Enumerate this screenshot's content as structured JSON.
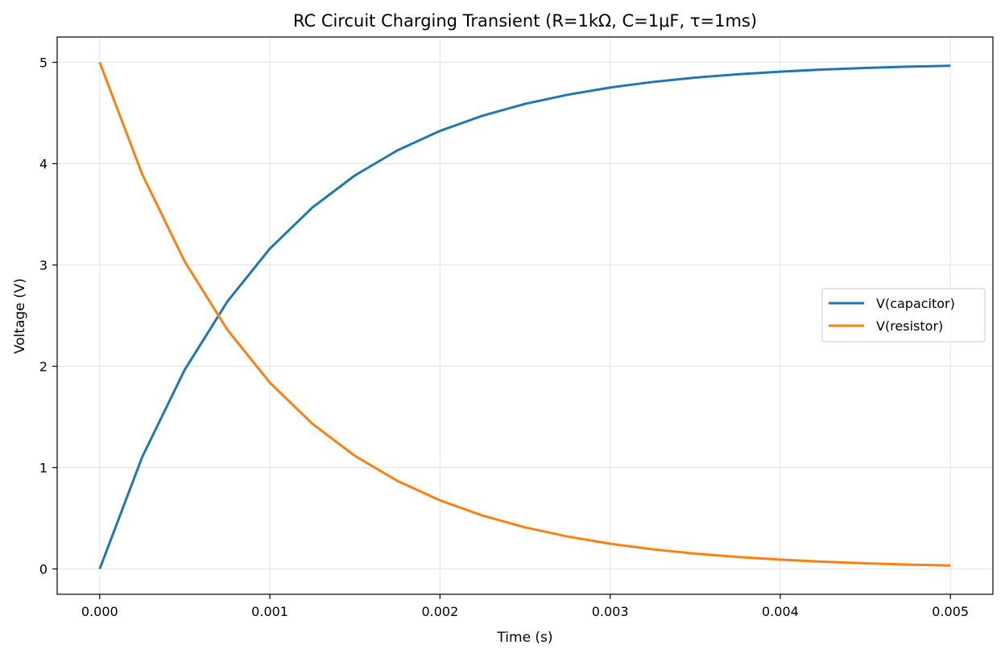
{
  "chart_data": {
    "type": "line",
    "title": "RC Circuit Charging Transient (R=1kΩ, C=1μF, τ=1ms)",
    "xlabel": "Time (s)",
    "ylabel": "Voltage (V)",
    "xlim": [
      -0.00025,
      0.00525
    ],
    "ylim": [
      -0.25,
      5.25
    ],
    "xticks": [
      0.0,
      0.001,
      0.002,
      0.003,
      0.004,
      0.005
    ],
    "xtick_labels": [
      "0.000",
      "0.001",
      "0.002",
      "0.003",
      "0.004",
      "0.005"
    ],
    "yticks": [
      0,
      1,
      2,
      3,
      4,
      5
    ],
    "ytick_labels": [
      "0",
      "1",
      "2",
      "3",
      "4",
      "5"
    ],
    "grid": true,
    "legend_position": "center-right",
    "x": [
      0.0,
      0.00025,
      0.0005,
      0.00075,
      0.001,
      0.00125,
      0.0015,
      0.00175,
      0.002,
      0.00225,
      0.0025,
      0.00275,
      0.003,
      0.00325,
      0.0035,
      0.00375,
      0.004,
      0.00425,
      0.0045,
      0.00475,
      0.005
    ],
    "series": [
      {
        "name": "V(capacitor)",
        "color": "#1f77b4",
        "values": [
          0.0,
          1.106,
          1.967,
          2.638,
          3.161,
          3.567,
          3.884,
          4.131,
          4.323,
          4.473,
          4.59,
          4.68,
          4.751,
          4.806,
          4.849,
          4.882,
          4.908,
          4.929,
          4.944,
          4.957,
          4.966
        ]
      },
      {
        "name": "V(resistor)",
        "color": "#ff7f0e",
        "values": [
          5.0,
          3.894,
          3.033,
          2.362,
          1.839,
          1.433,
          1.116,
          0.869,
          0.677,
          0.527,
          0.41,
          0.32,
          0.249,
          0.194,
          0.151,
          0.118,
          0.092,
          0.071,
          0.056,
          0.043,
          0.034
        ]
      }
    ]
  }
}
